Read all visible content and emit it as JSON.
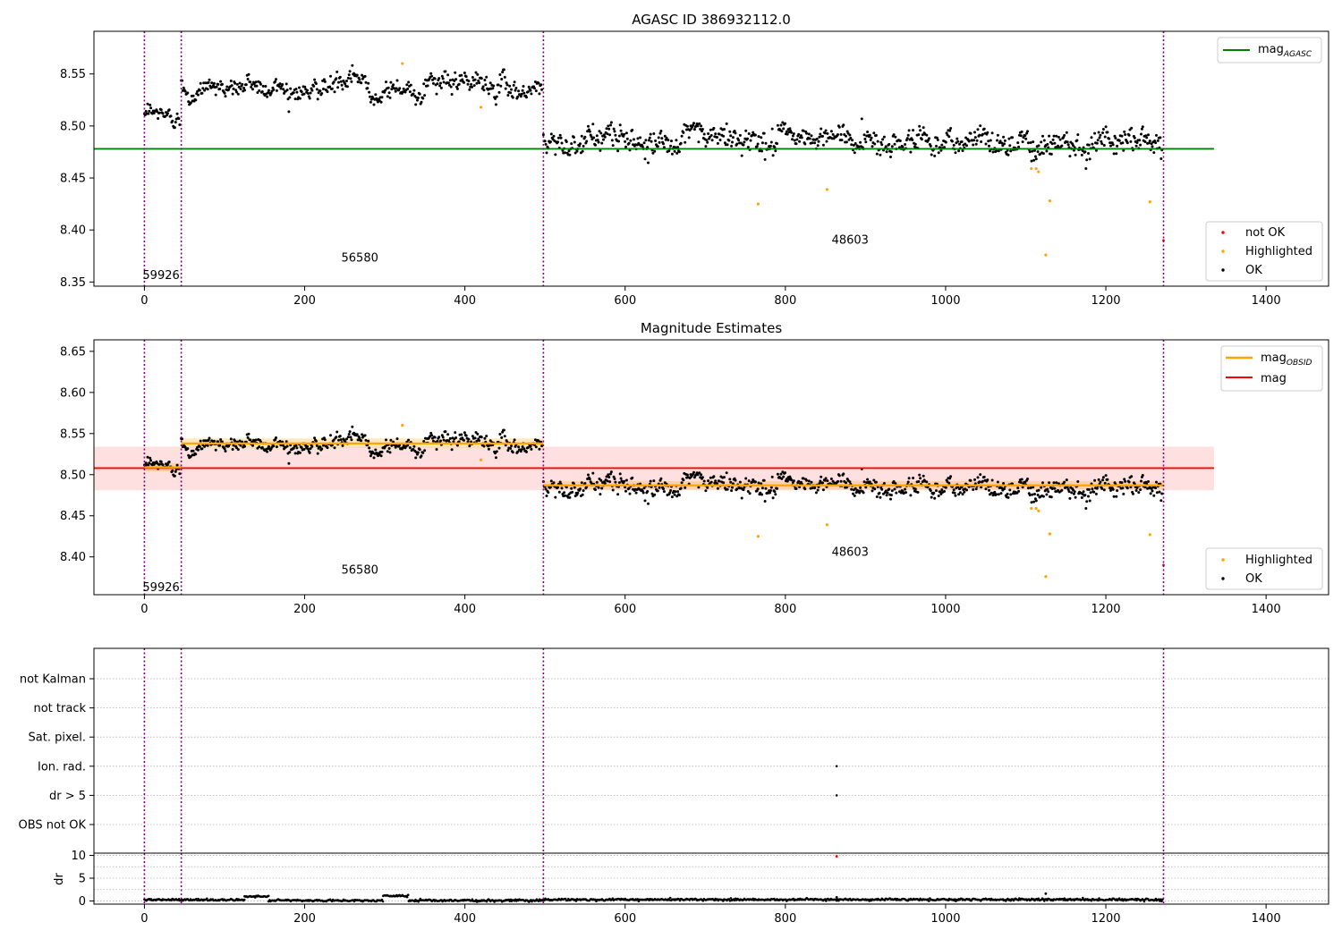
{
  "chart_data": [
    {
      "type": "scatter",
      "title": "AGASC ID 386932112.0",
      "xlim": [
        -63,
        1478
      ],
      "ylim": [
        8.346,
        8.591
      ],
      "xticks": [
        0,
        200,
        400,
        600,
        800,
        1000,
        1200,
        1400
      ],
      "yticks": [
        8.35,
        8.4,
        8.45,
        8.5,
        8.55
      ],
      "vlines": [
        0,
        46,
        498,
        1272
      ],
      "hline": {
        "y": 8.478,
        "x": [
          -63,
          1335
        ],
        "color": "#008000"
      },
      "annotations": [
        {
          "text": "59926",
          "x": 0,
          "y": 8.357
        },
        {
          "text": "56580",
          "x": 248,
          "y": 8.374
        },
        {
          "text": "48603",
          "x": 860,
          "y": 8.391
        }
      ],
      "legend_top": {
        "placement": "top-right",
        "entries": [
          {
            "label": "mag",
            "sub": "AGASC",
            "color": "#008000"
          }
        ]
      },
      "legend_bottom": {
        "placement": "bottom-right",
        "entries": [
          {
            "label": "not OK",
            "color": "#ff0000"
          },
          {
            "label": "Highlighted",
            "color": "#ffa500"
          },
          {
            "label": "OK",
            "color": "#000000"
          }
        ]
      },
      "segments": [
        {
          "x0": 0,
          "x1": 45,
          "n": 45,
          "mean": 8.508,
          "sd": 0.006
        },
        {
          "x0": 46,
          "x1": 497,
          "n": 450,
          "mean": 8.538,
          "sd": 0.0065
        },
        {
          "x0": 498,
          "x1": 1271,
          "n": 774,
          "mean": 8.487,
          "sd": 0.009
        }
      ],
      "highlighted": [
        [
          322,
          8.56
        ],
        [
          420,
          8.518
        ],
        [
          766,
          8.425
        ],
        [
          852,
          8.439
        ],
        [
          1107,
          8.459
        ],
        [
          1113,
          8.459
        ],
        [
          1116,
          8.456
        ],
        [
          1125,
          8.376
        ],
        [
          1130,
          8.428
        ],
        [
          1255,
          8.427
        ]
      ],
      "not_ok": [
        [
          1272,
          8.39
        ]
      ]
    },
    {
      "type": "scatter",
      "title": "Magnitude Estimates",
      "xlim": [
        -63,
        1478
      ],
      "ylim": [
        8.354,
        8.664
      ],
      "xticks": [
        0,
        200,
        400,
        600,
        800,
        1000,
        1200,
        1400
      ],
      "yticks": [
        8.4,
        8.45,
        8.5,
        8.55,
        8.6,
        8.65
      ],
      "vlines": [
        0,
        46,
        498,
        1272
      ],
      "mag_line": {
        "y": 8.508,
        "band": [
          8.481,
          8.534
        ],
        "x": [
          -63,
          1335
        ],
        "color": "#ff0000"
      },
      "obsid_lines": [
        {
          "x0": 0,
          "x1": 46,
          "y": 8.509,
          "band": [
            8.504,
            8.514
          ]
        },
        {
          "x0": 46,
          "x1": 498,
          "y": 8.538,
          "band": [
            8.533,
            8.544
          ]
        },
        {
          "x0": 498,
          "x1": 1272,
          "y": 8.487,
          "band": [
            8.482,
            8.492
          ]
        }
      ],
      "annotations": [
        {
          "text": "59926",
          "x": 0,
          "y": 8.364
        },
        {
          "text": "56580",
          "x": 248,
          "y": 8.385
        },
        {
          "text": "48603",
          "x": 860,
          "y": 8.407
        }
      ],
      "legend_top": {
        "placement": "top-right",
        "entries": [
          {
            "label": "mag",
            "sub": "OBSID",
            "color": "#ffa500"
          },
          {
            "label": "mag",
            "sub": "",
            "color": "#ff0000"
          }
        ]
      },
      "legend_bottom": {
        "placement": "bottom-right",
        "entries": [
          {
            "label": "Highlighted",
            "color": "#ffa500"
          },
          {
            "label": "OK",
            "color": "#000000"
          }
        ]
      },
      "segments": [
        {
          "x0": 0,
          "x1": 45,
          "n": 45,
          "mean": 8.508,
          "sd": 0.006
        },
        {
          "x0": 46,
          "x1": 497,
          "n": 450,
          "mean": 8.538,
          "sd": 0.0065
        },
        {
          "x0": 498,
          "x1": 1271,
          "n": 774,
          "mean": 8.487,
          "sd": 0.009
        }
      ],
      "highlighted": [
        [
          322,
          8.56
        ],
        [
          420,
          8.518
        ],
        [
          766,
          8.425
        ],
        [
          852,
          8.439
        ],
        [
          1107,
          8.459
        ],
        [
          1113,
          8.459
        ],
        [
          1116,
          8.456
        ],
        [
          1125,
          8.376
        ],
        [
          1130,
          8.428
        ],
        [
          1255,
          8.427
        ]
      ],
      "not_ok": [
        [
          1272,
          8.39
        ]
      ]
    },
    {
      "type": "scatter",
      "xlim": [
        -63,
        1478
      ],
      "categories": [
        "OBS not OK",
        "dr > 5",
        "Ion. rad.",
        "Sat. pixel.",
        "not track",
        "not Kalman"
      ],
      "flags": [
        {
          "category": "Ion. rad.",
          "x": 864
        },
        {
          "category": "dr > 5",
          "x": 864
        }
      ],
      "vlines": [
        0,
        46,
        498,
        1272
      ]
    },
    {
      "type": "scatter",
      "ylabel": "dr",
      "xlim": [
        -63,
        1478
      ],
      "ylim": [
        -0.7,
        10.5
      ],
      "xticks": [
        0,
        200,
        400,
        600,
        800,
        1000,
        1200,
        1400
      ],
      "yticks": [
        0,
        5,
        10
      ],
      "vlines": [
        0,
        46,
        498,
        1272
      ],
      "levels": [
        {
          "x0": 0,
          "x1": 125,
          "y": 0.25
        },
        {
          "x0": 125,
          "x1": 155,
          "y": 1.0
        },
        {
          "x0": 155,
          "x1": 298,
          "y": 0.1
        },
        {
          "x0": 298,
          "x1": 330,
          "y": 1.1
        },
        {
          "x0": 330,
          "x1": 498,
          "y": 0.1
        },
        {
          "x0": 498,
          "x1": 1272,
          "y": 0.3
        }
      ],
      "outliers": [
        [
          864,
          9.8,
          "#ff0000"
        ],
        [
          1125,
          1.6,
          "#000000"
        ],
        [
          864,
          0.8,
          "#000000"
        ]
      ]
    }
  ]
}
